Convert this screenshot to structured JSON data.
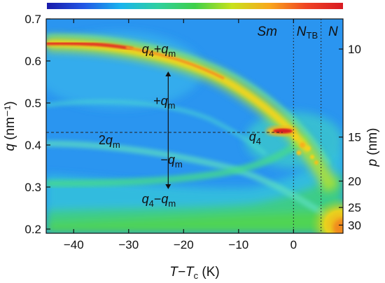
{
  "chart_data": {
    "type": "heatmap",
    "xlabel": {
      "main": "T−T",
      "sub": "c",
      "unit": " (K)"
    },
    "ylabel_left": {
      "main": "q",
      "unit": " (nm⁻¹)"
    },
    "ylabel_right": {
      "main": "p",
      "unit": " (nm)"
    },
    "xlim": [
      -45,
      9
    ],
    "ylim": [
      0.19,
      0.7
    ],
    "x_ticks": [
      -40,
      -30,
      -20,
      -10,
      0
    ],
    "x_tick_labels": [
      "−40",
      "−30",
      "−20",
      "−10",
      "0"
    ],
    "y_ticks": [
      0.2,
      0.3,
      0.4,
      0.5,
      0.6,
      0.7
    ],
    "y_tick_labels": [
      "0.2",
      "0.3",
      "0.4",
      "0.5",
      "0.6",
      "0.7"
    ],
    "right_ticks_p": [
      10,
      15,
      20,
      25,
      30
    ],
    "right_tick_labels": [
      "10",
      "15",
      "20",
      "25",
      "30"
    ],
    "phase_boundaries_x": [
      0,
      5
    ],
    "reference_q": 0.43,
    "phases": [
      {
        "label": "Sm",
        "x": -4.8
      },
      {
        "label": "N",
        "sub": "TB",
        "x": 2.5
      },
      {
        "label": "N",
        "x": 7.2
      }
    ],
    "annotations": [
      {
        "main": "q",
        "sub1": "4",
        "rest": "+q",
        "sub2": "m",
        "x": -24.5,
        "y": 0.618
      },
      {
        "main": "+q",
        "sub1": "m",
        "x": -23.5,
        "y": 0.495
      },
      {
        "main": "2q",
        "sub1": "m",
        "x": -33.5,
        "y": 0.402
      },
      {
        "main": "−q",
        "sub1": "m",
        "x": -22.2,
        "y": 0.355
      },
      {
        "main": "q",
        "sub1": "4",
        "x": -7.0,
        "y": 0.41
      },
      {
        "main": "q",
        "sub1": "4",
        "rest": "−q",
        "sub2": "m",
        "x": -24.5,
        "y": 0.262
      }
    ],
    "arrow_x": -22.8,
    "arrow_y_range": [
      0.575,
      0.295
    ],
    "colorbar": [
      "#1a1aaa",
      "#2257e6",
      "#19b4ee",
      "#2fd0a0",
      "#3fd04a",
      "#c8e21a",
      "#f9a81a",
      "#f04424",
      "#d81a22"
    ]
  }
}
